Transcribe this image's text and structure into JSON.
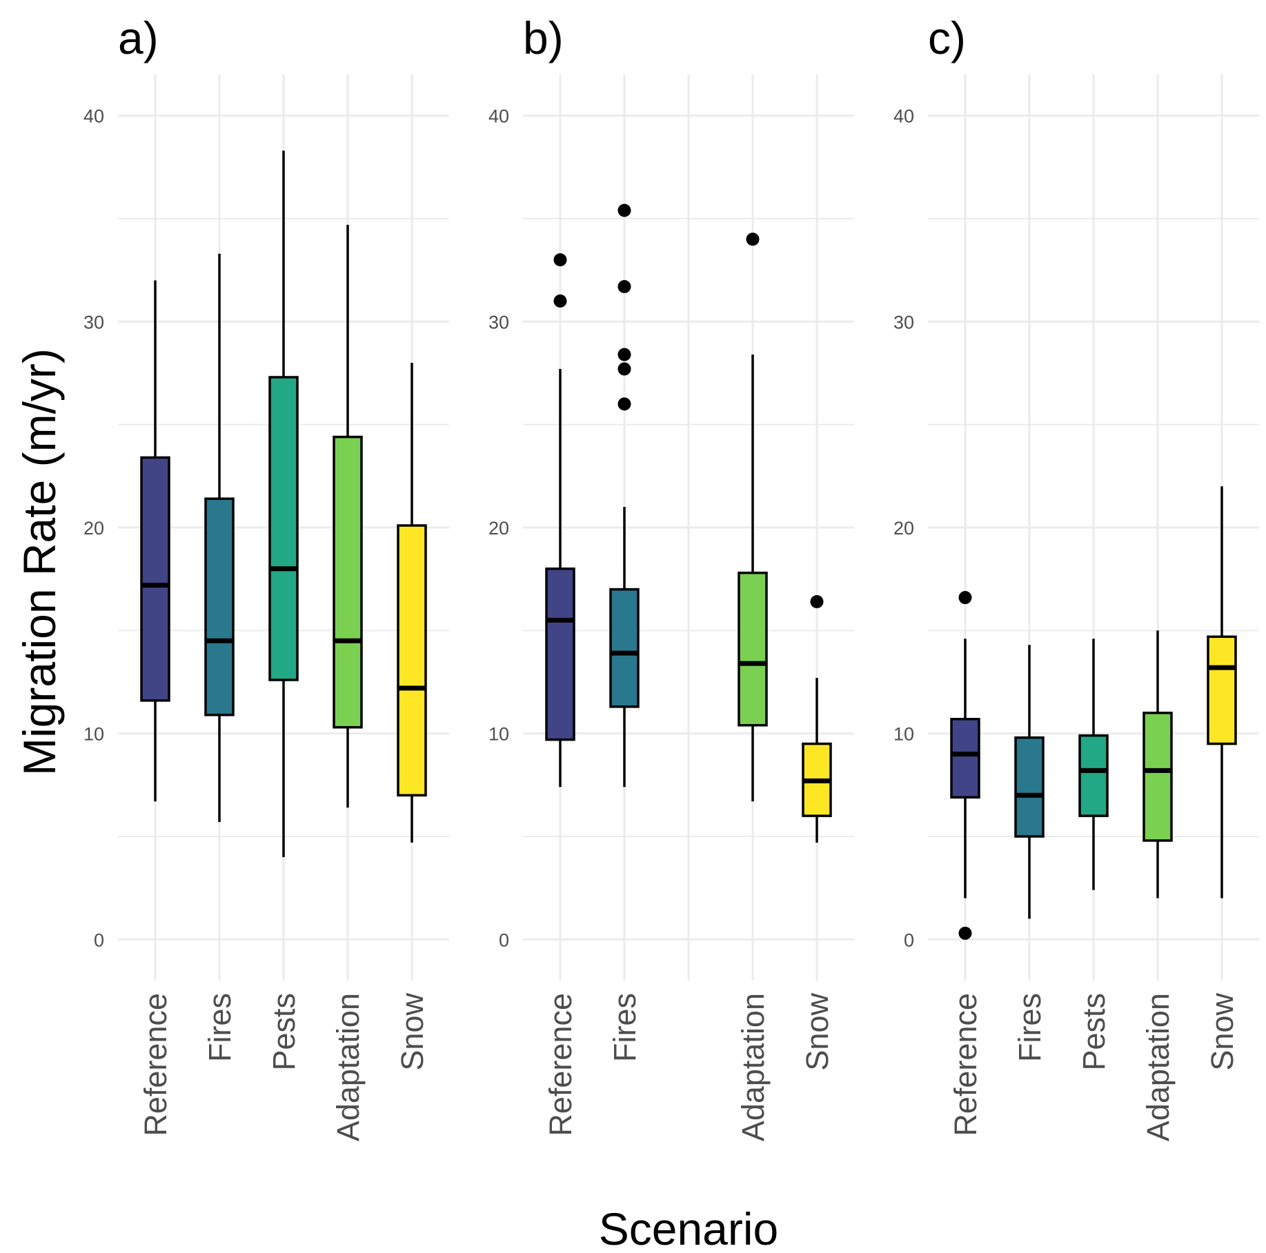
{
  "y_axis_label": "Migration Rate (m/yr)",
  "x_axis_label": "Scenario",
  "colors": {
    "Reference": "#414487",
    "Fires": "#2A788E",
    "Pests": "#22A884",
    "Adaptation": "#7AD151",
    "Snow": "#FDE725"
  },
  "chart_data": [
    {
      "type": "box",
      "panel_label": "a)",
      "categories": [
        "Reference",
        "Fires",
        "Pests",
        "Adaptation",
        "Snow"
      ],
      "ylim": [
        -2,
        42
      ],
      "yticks": [
        0,
        10,
        20,
        30,
        40
      ],
      "grid": true,
      "boxes": [
        {
          "category": "Reference",
          "whisker_low": 6.7,
          "q1": 11.6,
          "median": 17.2,
          "q3": 23.4,
          "whisker_high": 32.0,
          "outliers": []
        },
        {
          "category": "Fires",
          "whisker_low": 5.7,
          "q1": 10.9,
          "median": 14.5,
          "q3": 21.4,
          "whisker_high": 33.3,
          "outliers": []
        },
        {
          "category": "Pests",
          "whisker_low": 4.0,
          "q1": 12.6,
          "median": 18.0,
          "q3": 27.3,
          "whisker_high": 38.3,
          "outliers": []
        },
        {
          "category": "Adaptation",
          "whisker_low": 6.4,
          "q1": 10.3,
          "median": 14.5,
          "q3": 24.4,
          "whisker_high": 34.7,
          "outliers": []
        },
        {
          "category": "Snow",
          "whisker_low": 4.7,
          "q1": 7.0,
          "median": 12.2,
          "q3": 20.1,
          "whisker_high": 28.0,
          "outliers": []
        }
      ]
    },
    {
      "type": "box",
      "panel_label": "b)",
      "categories": [
        "Reference",
        "Fires",
        "",
        "Adaptation",
        "Snow"
      ],
      "ylim": [
        -2,
        42
      ],
      "yticks": [
        0,
        10,
        20,
        30,
        40
      ],
      "grid": true,
      "boxes": [
        {
          "category": "Reference",
          "whisker_low": 7.4,
          "q1": 9.7,
          "median": 15.5,
          "q3": 18.0,
          "whisker_high": 27.7,
          "outliers": [
            31.0,
            33.0
          ]
        },
        {
          "category": "Fires",
          "whisker_low": 7.4,
          "q1": 11.3,
          "median": 13.9,
          "q3": 17.0,
          "whisker_high": 21.0,
          "outliers": [
            26.0,
            27.7,
            28.4,
            31.7,
            35.4
          ]
        },
        {
          "category": "Adaptation",
          "whisker_low": 6.7,
          "q1": 10.4,
          "median": 13.4,
          "q3": 17.8,
          "whisker_high": 28.4,
          "outliers": [
            34.0
          ]
        },
        {
          "category": "Snow",
          "whisker_low": 4.7,
          "q1": 6.0,
          "median": 7.7,
          "q3": 9.5,
          "whisker_high": 12.7,
          "outliers": [
            16.4
          ]
        }
      ]
    },
    {
      "type": "box",
      "panel_label": "c)",
      "categories": [
        "Reference",
        "Fires",
        "Pests",
        "Adaptation",
        "Snow"
      ],
      "ylim": [
        -2,
        42
      ],
      "yticks": [
        0,
        10,
        20,
        30,
        40
      ],
      "grid": true,
      "boxes": [
        {
          "category": "Reference",
          "whisker_low": 2.0,
          "q1": 6.9,
          "median": 9.0,
          "q3": 10.7,
          "whisker_high": 14.6,
          "outliers": [
            0.3,
            16.6
          ]
        },
        {
          "category": "Fires",
          "whisker_low": 1.0,
          "q1": 5.0,
          "median": 7.0,
          "q3": 9.8,
          "whisker_high": 14.3,
          "outliers": []
        },
        {
          "category": "Pests",
          "whisker_low": 2.4,
          "q1": 6.0,
          "median": 8.2,
          "q3": 9.9,
          "whisker_high": 14.6,
          "outliers": []
        },
        {
          "category": "Adaptation",
          "whisker_low": 2.0,
          "q1": 4.8,
          "median": 8.2,
          "q3": 11.0,
          "whisker_high": 15.0,
          "outliers": []
        },
        {
          "category": "Snow",
          "whisker_low": 2.0,
          "q1": 9.5,
          "median": 13.2,
          "q3": 14.7,
          "whisker_high": 22.0,
          "outliers": []
        }
      ]
    }
  ]
}
